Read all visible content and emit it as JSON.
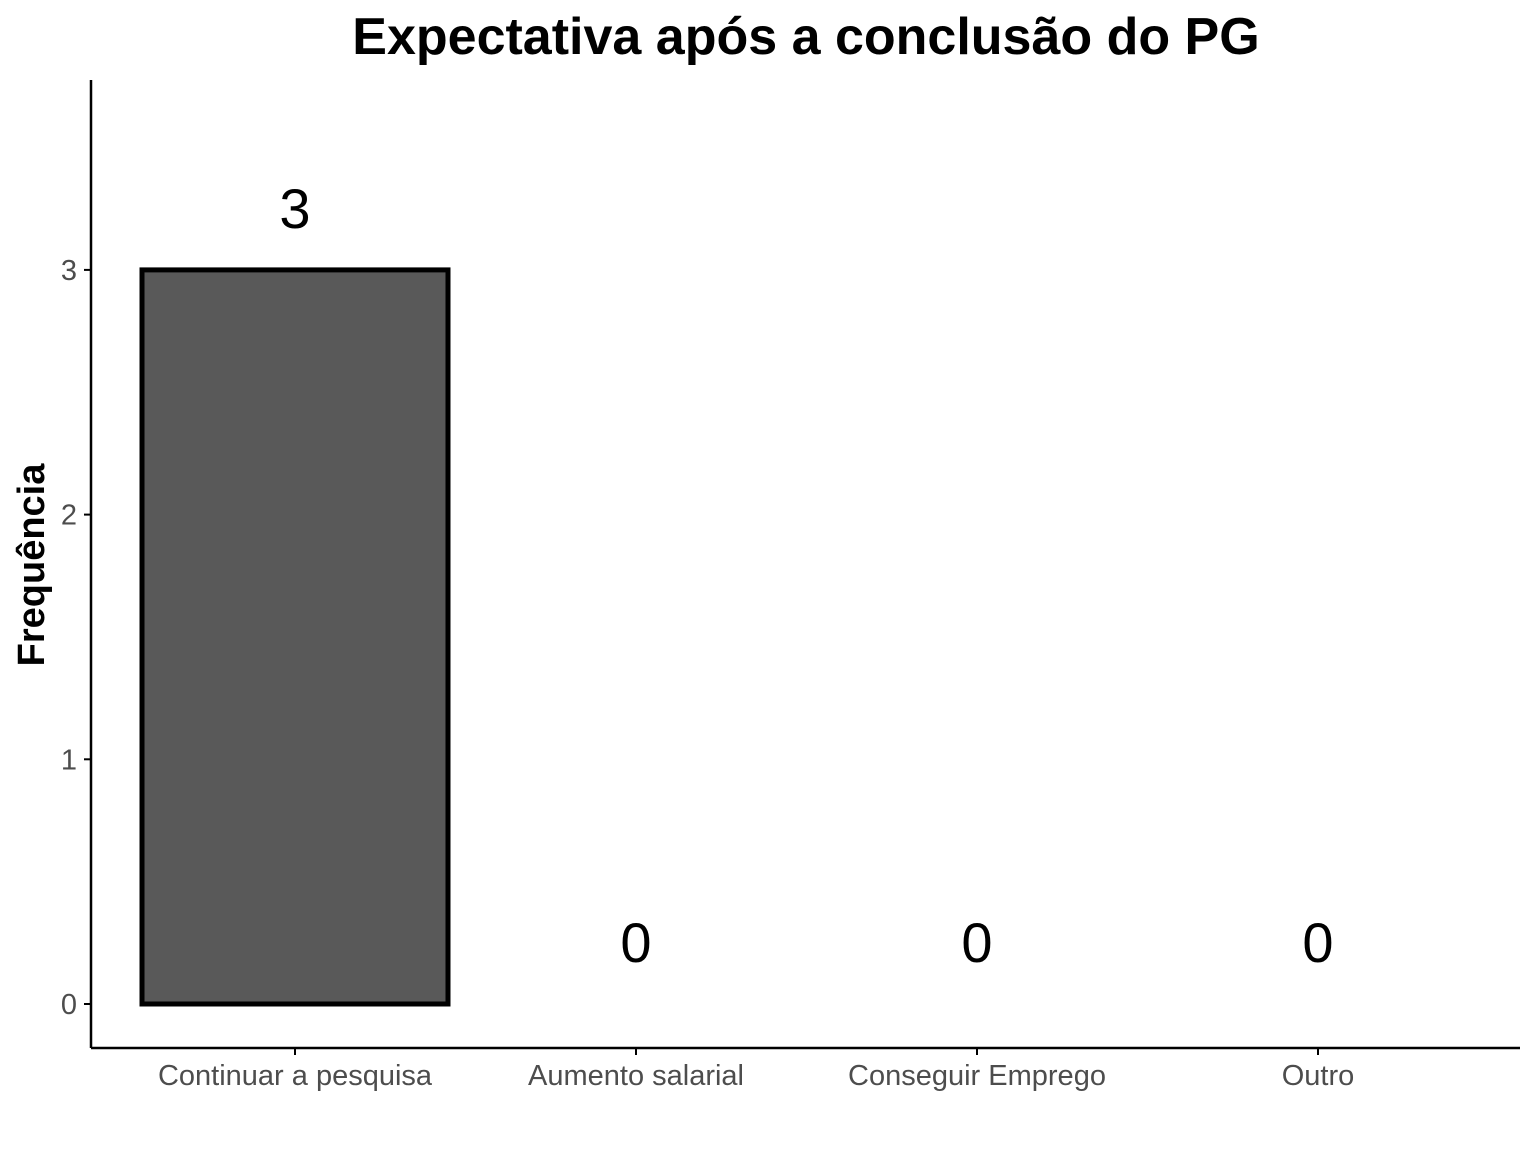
{
  "chart_data": {
    "type": "bar",
    "title": "Expectativa após a conclusão do PG",
    "xlabel": "",
    "ylabel": "Frequência",
    "categories": [
      "Continuar a pesquisa",
      "Aumento salarial",
      "Conseguir Emprego",
      "Outro"
    ],
    "values": [
      3,
      0,
      0,
      0
    ],
    "data_labels": [
      "3",
      "0",
      "0",
      "0"
    ],
    "yticks": [
      0,
      1,
      2,
      3
    ],
    "ylim": [
      -0.18,
      3.75
    ],
    "grid": false,
    "legend": "none",
    "colors": {
      "bar_fill": "#595959",
      "bar_stroke": "#000000",
      "axis": "#000000",
      "tick_label": "#4d4d4d"
    }
  }
}
